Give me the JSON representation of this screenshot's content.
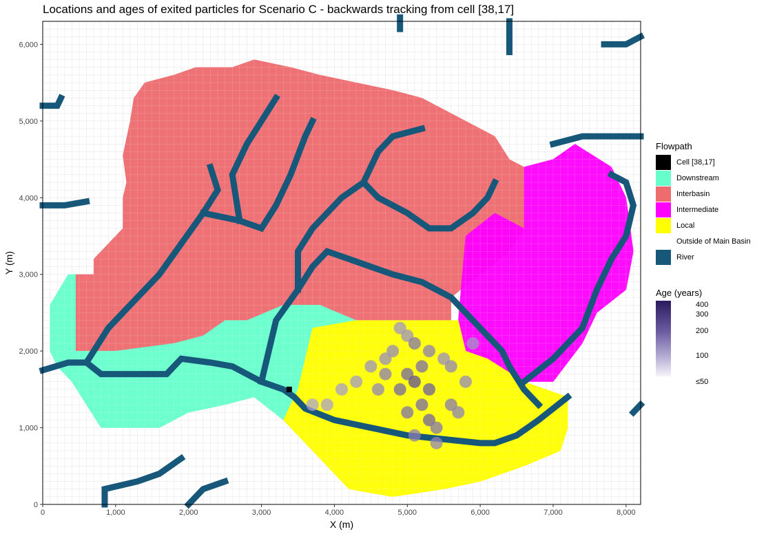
{
  "chart_data": {
    "type": "heatmap",
    "title": "Locations and ages of exited particles for Scenario C - backwards tracking from cell [38,17]",
    "xlabel": "X (m)",
    "ylabel": "Y (m)",
    "xlim": [
      0,
      8200
    ],
    "ylim": [
      0,
      6300
    ],
    "x_ticks": [
      0,
      1000,
      2000,
      3000,
      4000,
      5000,
      6000,
      7000,
      8000
    ],
    "x_tick_labels": [
      "0",
      "1,000",
      "2,000",
      "3,000",
      "4,000",
      "5,000",
      "6,000",
      "7,000",
      "8,000"
    ],
    "y_ticks": [
      0,
      1000,
      2000,
      3000,
      4000,
      5000,
      6000
    ],
    "y_tick_labels": [
      "0",
      "1,000",
      "2,000",
      "3,000",
      "4,000",
      "5,000",
      "6,000"
    ],
    "grid": true,
    "cell_size_m": 100,
    "legend_flowpath": {
      "title": "Flowpath",
      "entries": [
        {
          "label": "Cell [38,17]",
          "color": "#000000"
        },
        {
          "label": "Downstream",
          "color": "#66ffcc"
        },
        {
          "label": "Interbasin",
          "color": "#ee6b6e"
        },
        {
          "label": "Intermediate",
          "color": "#ff00ff"
        },
        {
          "label": "Local",
          "color": "#ffff00"
        },
        {
          "label": "Outside of Main Basin",
          "color": "#ffffff"
        },
        {
          "label": "River",
          "color": "#17577a"
        }
      ]
    },
    "legend_age": {
      "title": "Age (years)",
      "tick_labels": [
        "400",
        "300",
        "200",
        "100",
        "≤50"
      ],
      "tick_values": [
        400,
        300,
        200,
        100,
        50
      ]
    },
    "regions": {
      "interbasin": [
        [
          450,
          2000
        ],
        [
          450,
          3000
        ],
        [
          700,
          3000
        ],
        [
          700,
          3200
        ],
        [
          1100,
          3600
        ],
        [
          1100,
          4000
        ],
        [
          1150,
          4200
        ],
        [
          1100,
          4550
        ],
        [
          1200,
          5000
        ],
        [
          1250,
          5300
        ],
        [
          1400,
          5500
        ],
        [
          1800,
          5600
        ],
        [
          2100,
          5700
        ],
        [
          2600,
          5700
        ],
        [
          2900,
          5800
        ],
        [
          3400,
          5700
        ],
        [
          3800,
          5600
        ],
        [
          4300,
          5500
        ],
        [
          4800,
          5400
        ],
        [
          5200,
          5300
        ],
        [
          5600,
          5100
        ],
        [
          6000,
          4900
        ],
        [
          6200,
          4800
        ],
        [
          6400,
          4500
        ],
        [
          6600,
          4400
        ],
        [
          6600,
          3600
        ],
        [
          6400,
          3300
        ],
        [
          6000,
          3000
        ],
        [
          5600,
          2700
        ],
        [
          5600,
          2400
        ],
        [
          4300,
          2400
        ],
        [
          3800,
          2600
        ],
        [
          3300,
          2600
        ],
        [
          2800,
          2400
        ],
        [
          2500,
          2400
        ],
        [
          2200,
          2200
        ],
        [
          1800,
          2100
        ],
        [
          1000,
          2000
        ],
        [
          450,
          2000
        ]
      ],
      "downstream": [
        [
          100,
          2600
        ],
        [
          350,
          3000
        ],
        [
          450,
          3000
        ],
        [
          450,
          2000
        ],
        [
          1000,
          2000
        ],
        [
          1800,
          2100
        ],
        [
          2200,
          2200
        ],
        [
          2500,
          2400
        ],
        [
          2800,
          2400
        ],
        [
          3300,
          2600
        ],
        [
          3800,
          2600
        ],
        [
          4300,
          2400
        ],
        [
          3700,
          2300
        ],
        [
          3500,
          1500
        ],
        [
          3300,
          1100
        ],
        [
          2900,
          1400
        ],
        [
          2500,
          1300
        ],
        [
          2000,
          1200
        ],
        [
          1600,
          1000
        ],
        [
          800,
          1000
        ],
        [
          600,
          1300
        ],
        [
          400,
          1600
        ],
        [
          200,
          1800
        ],
        [
          100,
          2000
        ],
        [
          100,
          2600
        ]
      ],
      "local": [
        [
          3300,
          1100
        ],
        [
          3500,
          1500
        ],
        [
          3700,
          2300
        ],
        [
          4300,
          2400
        ],
        [
          4800,
          2400
        ],
        [
          5400,
          2400
        ],
        [
          5700,
          2400
        ],
        [
          5800,
          2000
        ],
        [
          6100,
          1900
        ],
        [
          6600,
          1600
        ],
        [
          7200,
          1400
        ],
        [
          7200,
          1000
        ],
        [
          7100,
          700
        ],
        [
          6600,
          500
        ],
        [
          6000,
          300
        ],
        [
          5500,
          200
        ],
        [
          4800,
          100
        ],
        [
          4200,
          200
        ],
        [
          3700,
          700
        ],
        [
          3300,
          1100
        ]
      ],
      "intermediate": [
        [
          5700,
          2400
        ],
        [
          5800,
          3500
        ],
        [
          6200,
          3800
        ],
        [
          6600,
          3600
        ],
        [
          6600,
          4400
        ],
        [
          7000,
          4500
        ],
        [
          7300,
          4700
        ],
        [
          7800,
          4400
        ],
        [
          8000,
          4000
        ],
        [
          8100,
          3300
        ],
        [
          8000,
          2800
        ],
        [
          7600,
          2500
        ],
        [
          7400,
          2100
        ],
        [
          7000,
          1600
        ],
        [
          6600,
          1600
        ],
        [
          6100,
          1900
        ],
        [
          5800,
          2000
        ],
        [
          5700,
          2400
        ]
      ]
    },
    "rivers": [
      [
        [
          0,
          1750
        ],
        [
          350,
          1850
        ],
        [
          600,
          1850
        ],
        [
          800,
          1700
        ],
        [
          1300,
          1700
        ],
        [
          1700,
          1700
        ],
        [
          1900,
          1900
        ],
        [
          2300,
          1850
        ],
        [
          2600,
          1800
        ],
        [
          3000,
          1600
        ],
        [
          3300,
          1500
        ],
        [
          3450,
          1400
        ],
        [
          3600,
          1250
        ],
        [
          4000,
          1100
        ],
        [
          4500,
          1000
        ],
        [
          5000,
          900
        ],
        [
          5500,
          850
        ],
        [
          6000,
          800
        ],
        [
          6200,
          800
        ],
        [
          6500,
          900
        ],
        [
          6800,
          1100
        ],
        [
          7200,
          1400
        ]
      ],
      [
        [
          600,
          1850
        ],
        [
          900,
          2300
        ],
        [
          1200,
          2600
        ],
        [
          1600,
          3000
        ],
        [
          1900,
          3400
        ],
        [
          2200,
          3800
        ],
        [
          2400,
          4100
        ],
        [
          2300,
          4400
        ]
      ],
      [
        [
          2200,
          3800
        ],
        [
          2700,
          3700
        ],
        [
          3000,
          3600
        ],
        [
          3200,
          3900
        ],
        [
          3400,
          4300
        ],
        [
          3600,
          4800
        ],
        [
          3700,
          5000
        ]
      ],
      [
        [
          2700,
          3700
        ],
        [
          2600,
          4300
        ],
        [
          2800,
          4700
        ],
        [
          3000,
          5000
        ],
        [
          3200,
          5300
        ]
      ],
      [
        [
          3000,
          1600
        ],
        [
          3200,
          2400
        ],
        [
          3500,
          2800
        ],
        [
          3700,
          3100
        ],
        [
          3900,
          3300
        ],
        [
          4200,
          3200
        ],
        [
          4500,
          3100
        ],
        [
          4800,
          3000
        ],
        [
          5200,
          2900
        ],
        [
          5600,
          2700
        ],
        [
          5800,
          2500
        ],
        [
          6100,
          2200
        ],
        [
          6300,
          2000
        ],
        [
          6400,
          1800
        ],
        [
          6600,
          1500
        ],
        [
          6800,
          1300
        ]
      ],
      [
        [
          3500,
          2800
        ],
        [
          3500,
          3300
        ],
        [
          3700,
          3600
        ],
        [
          3900,
          3800
        ],
        [
          4100,
          4000
        ],
        [
          4400,
          4200
        ],
        [
          4600,
          4600
        ],
        [
          4800,
          4800
        ],
        [
          5200,
          4900
        ]
      ],
      [
        [
          4400,
          4200
        ],
        [
          4600,
          4000
        ],
        [
          5000,
          3800
        ],
        [
          5300,
          3600
        ],
        [
          5600,
          3600
        ],
        [
          5900,
          3800
        ],
        [
          6100,
          4000
        ],
        [
          6200,
          4200
        ]
      ],
      [
        [
          6600,
          1600
        ],
        [
          7000,
          1900
        ],
        [
          7400,
          2300
        ],
        [
          7600,
          2800
        ],
        [
          7800,
          3200
        ],
        [
          8000,
          3500
        ],
        [
          8100,
          3900
        ],
        [
          8000,
          4200
        ],
        [
          7800,
          4300
        ]
      ],
      [
        [
          7000,
          4700
        ],
        [
          7400,
          4800
        ],
        [
          7700,
          4800
        ],
        [
          8200,
          4800
        ]
      ],
      [
        [
          7700,
          6000
        ],
        [
          8000,
          6000
        ],
        [
          8200,
          6100
        ]
      ],
      [
        [
          0,
          3900
        ],
        [
          300,
          3900
        ],
        [
          600,
          3950
        ]
      ],
      [
        [
          0,
          5200
        ],
        [
          200,
          5200
        ],
        [
          250,
          5300
        ]
      ],
      [
        [
          850,
          0
        ],
        [
          850,
          200
        ],
        [
          1300,
          300
        ],
        [
          1600,
          400
        ],
        [
          1900,
          600
        ]
      ],
      [
        [
          2000,
          0
        ],
        [
          2200,
          200
        ],
        [
          2500,
          300
        ]
      ],
      [
        [
          4900,
          6200
        ],
        [
          4900,
          6350
        ]
      ],
      [
        [
          6400,
          5900
        ],
        [
          6400,
          6300
        ]
      ],
      [
        [
          8100,
          1200
        ],
        [
          8200,
          1300
        ]
      ]
    ],
    "target_cell": {
      "x": 3380,
      "y": 1500,
      "label": "Cell [38,17]"
    },
    "particle_cloud": [
      {
        "x": 4900,
        "y": 2300,
        "age": 120
      },
      {
        "x": 5000,
        "y": 2200,
        "age": 130
      },
      {
        "x": 4800,
        "y": 2000,
        "age": 150
      },
      {
        "x": 5100,
        "y": 2100,
        "age": 200
      },
      {
        "x": 5300,
        "y": 2000,
        "age": 180
      },
      {
        "x": 5500,
        "y": 1900,
        "age": 140
      },
      {
        "x": 5600,
        "y": 1800,
        "age": 160
      },
      {
        "x": 5200,
        "y": 1800,
        "age": 220
      },
      {
        "x": 5000,
        "y": 1700,
        "age": 240
      },
      {
        "x": 4700,
        "y": 1700,
        "age": 180
      },
      {
        "x": 4500,
        "y": 1800,
        "age": 130
      },
      {
        "x": 4300,
        "y": 1600,
        "age": 110
      },
      {
        "x": 4100,
        "y": 1500,
        "age": 100
      },
      {
        "x": 5300,
        "y": 1500,
        "age": 260
      },
      {
        "x": 5200,
        "y": 1300,
        "age": 230
      },
      {
        "x": 5000,
        "y": 1200,
        "age": 210
      },
      {
        "x": 5300,
        "y": 1100,
        "age": 250
      },
      {
        "x": 5400,
        "y": 1000,
        "age": 200
      },
      {
        "x": 5600,
        "y": 1300,
        "age": 190
      },
      {
        "x": 5700,
        "y": 1200,
        "age": 170
      },
      {
        "x": 4900,
        "y": 1500,
        "age": 240
      },
      {
        "x": 5100,
        "y": 1600,
        "age": 300
      },
      {
        "x": 4700,
        "y": 1900,
        "age": 140
      },
      {
        "x": 3900,
        "y": 1300,
        "age": 90
      },
      {
        "x": 3700,
        "y": 1300,
        "age": 80
      },
      {
        "x": 5900,
        "y": 2100,
        "age": 120
      },
      {
        "x": 5100,
        "y": 900,
        "age": 180
      },
      {
        "x": 5400,
        "y": 800,
        "age": 160
      },
      {
        "x": 5800,
        "y": 1600,
        "age": 150
      },
      {
        "x": 4600,
        "y": 1500,
        "age": 160
      }
    ]
  }
}
